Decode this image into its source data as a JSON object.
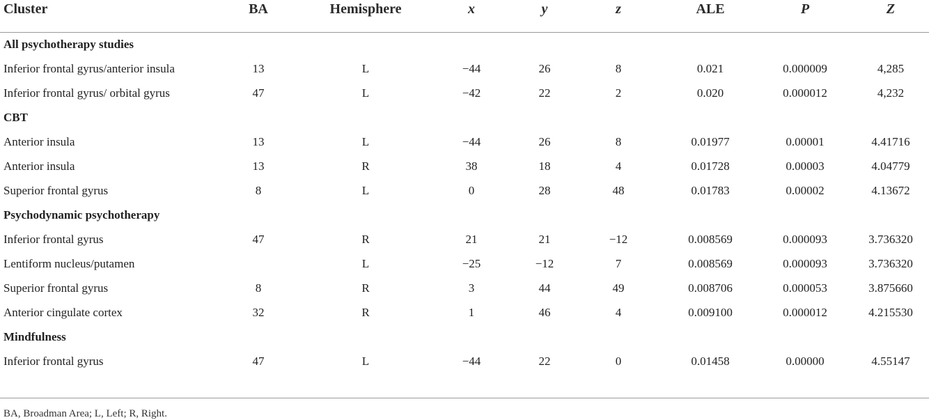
{
  "table": {
    "headers": {
      "cluster": "Cluster",
      "ba": "BA",
      "hemisphere": "Hemisphere",
      "x": "x",
      "y": "y",
      "z": "z",
      "ale": "ALE",
      "p": "P",
      "zscore": "Z"
    },
    "groups": [
      {
        "title": "All psychotherapy studies",
        "rows": [
          [
            "Inferior frontal gyrus/anterior insula",
            "13",
            "L",
            "−44",
            "26",
            "8",
            "0.021",
            "0.000009",
            "4,285"
          ],
          [
            "Inferior frontal gyrus/ orbital gyrus",
            "47",
            "L",
            "−42",
            "22",
            "2",
            "0.020",
            "0.000012",
            "4,232"
          ]
        ]
      },
      {
        "title": "CBT",
        "rows": [
          [
            "Anterior insula",
            "13",
            "L",
            "−44",
            "26",
            "8",
            "0.01977",
            "0.00001",
            "4.41716"
          ],
          [
            "Anterior insula",
            "13",
            "R",
            "38",
            "18",
            "4",
            "0.01728",
            "0.00003",
            "4.04779"
          ],
          [
            "Superior frontal gyrus",
            "8",
            "L",
            "0",
            "28",
            "48",
            "0.01783",
            "0.00002",
            "4.13672"
          ]
        ]
      },
      {
        "title": "Psychodynamic psychotherapy",
        "rows": [
          [
            "Inferior frontal gyrus",
            "47",
            "R",
            "21",
            "21",
            "−12",
            "0.008569",
            "0.000093",
            "3.736320"
          ],
          [
            "Lentiform nucleus/putamen",
            "",
            "L",
            "−25",
            "−12",
            "7",
            "0.008569",
            "0.000093",
            "3.736320"
          ],
          [
            "Superior frontal gyrus",
            "8",
            "R",
            "3",
            "44",
            "49",
            "0.008706",
            "0.000053",
            "3.875660"
          ],
          [
            "Anterior cingulate cortex",
            "32",
            "R",
            "1",
            "46",
            "4",
            "0.009100",
            "0.000012",
            "4.215530"
          ]
        ]
      },
      {
        "title": "Mindfulness",
        "rows": [
          [
            "Inferior frontal gyrus",
            "47",
            "L",
            "−44",
            "22",
            "0",
            "0.01458",
            "0.00000",
            "4.55147"
          ]
        ]
      }
    ],
    "footnote": "BA, Broadman Area; L, Left; R, Right."
  }
}
